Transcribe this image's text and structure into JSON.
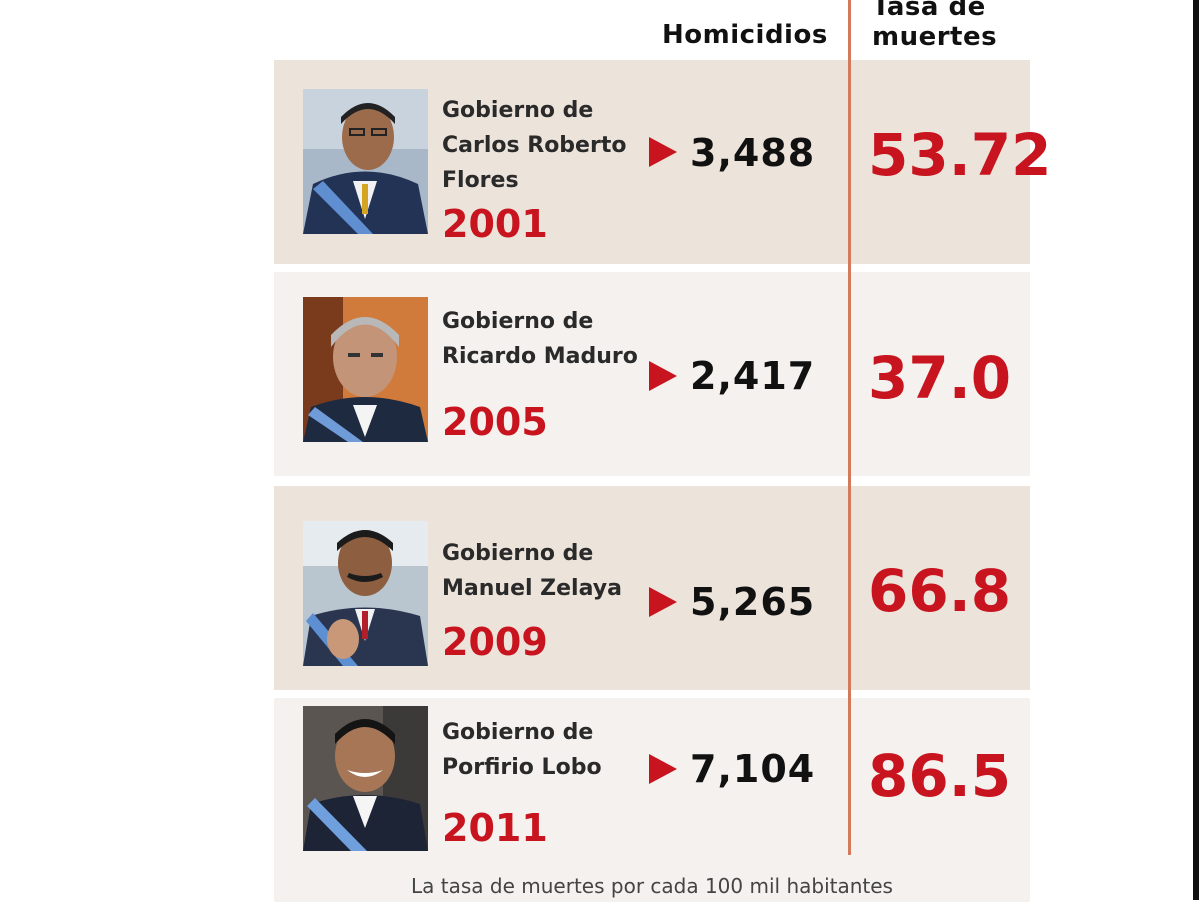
{
  "headers": {
    "homicidios": "Homicidios",
    "tasa": "Tasa de\nmuertes"
  },
  "footnote": "La tasa de muertes por cada 100 mil habitantes",
  "colors": {
    "accent_red": "#c8141e",
    "row_shade": "#ece3db",
    "row_light": "#f4f1ee",
    "divider": "#d27a5a"
  },
  "rows": [
    {
      "gov": "Gobierno de\nCarlos Roberto\nFlores",
      "year": "2001",
      "homicidios": "3,488",
      "tasa": "53.72",
      "photo_icon": "president-portrait-icon"
    },
    {
      "gov": "Gobierno de\nRicardo Maduro",
      "year": "2005",
      "homicidios": "2,417",
      "tasa": "37.0",
      "photo_icon": "president-portrait-icon"
    },
    {
      "gov": "Gobierno de\nManuel Zelaya",
      "year": "2009",
      "homicidios": "5,265",
      "tasa": "66.8",
      "photo_icon": "president-portrait-icon"
    },
    {
      "gov": "Gobierno de\nPorfirio Lobo",
      "year": "2011",
      "homicidios": "7,104",
      "tasa": "86.5",
      "photo_icon": "president-portrait-icon"
    }
  ],
  "chart_data": {
    "type": "table",
    "columns": [
      "Homicidios",
      "Tasa de muertes"
    ],
    "categories": [
      "2001",
      "2005",
      "2009",
      "2011"
    ],
    "series": [
      {
        "name": "Homicidios",
        "values": [
          3488,
          2417,
          5265,
          7104
        ]
      },
      {
        "name": "Tasa de muertes",
        "values": [
          53.72,
          37.0,
          66.8,
          86.5
        ]
      }
    ]
  }
}
